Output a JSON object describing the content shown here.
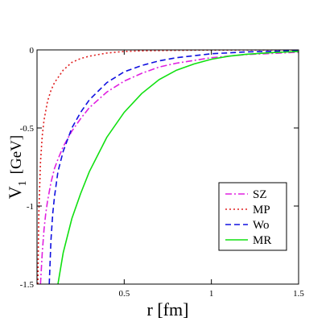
{
  "chart_data": {
    "type": "line",
    "xlabel": "r [fm]",
    "ylabel": "V",
    "ylabel_subscript": "1",
    "ylabel_unit": "[GeV]",
    "xlim": [
      0.0,
      1.5
    ],
    "ylim": [
      -1.5,
      0.0
    ],
    "x_ticks": [
      0.5,
      1.0,
      1.5
    ],
    "x_tick_labels": [
      "0.5",
      "1",
      "1.5"
    ],
    "y_ticks": [
      0.0,
      -0.5,
      -1.0,
      -1.5
    ],
    "y_tick_labels": [
      "0",
      "-0.5",
      "-1",
      "-1.5"
    ],
    "grid": false,
    "legend_position": "bottom-right",
    "series": [
      {
        "name": "SZ",
        "color": "#e020e0",
        "dash": "dash-dot",
        "x": [
          0.02,
          0.03,
          0.04,
          0.05,
          0.06,
          0.08,
          0.1,
          0.12,
          0.15,
          0.2,
          0.25,
          0.3,
          0.4,
          0.5,
          0.6,
          0.7,
          0.8,
          1.0,
          1.2,
          1.5
        ],
        "y": [
          -1.5,
          -1.3,
          -1.15,
          -1.05,
          -0.97,
          -0.85,
          -0.76,
          -0.7,
          -0.62,
          -0.52,
          -0.44,
          -0.37,
          -0.27,
          -0.2,
          -0.15,
          -0.11,
          -0.085,
          -0.05,
          -0.03,
          -0.015
        ]
      },
      {
        "name": "MP",
        "color": "#e02020",
        "dash": "dotted",
        "x": [
          0.005,
          0.01,
          0.02,
          0.03,
          0.04,
          0.06,
          0.08,
          0.1,
          0.15,
          0.2,
          0.25,
          0.3,
          0.4,
          0.5,
          0.6,
          0.8,
          1.0,
          1.5
        ],
        "y": [
          -1.5,
          -1.05,
          -0.72,
          -0.55,
          -0.45,
          -0.33,
          -0.26,
          -0.21,
          -0.13,
          -0.08,
          -0.055,
          -0.04,
          -0.02,
          -0.01,
          -0.006,
          -0.003,
          -0.001,
          0.0
        ]
      },
      {
        "name": "Wo",
        "color": "#1010e0",
        "dash": "dashed",
        "x": [
          0.07,
          0.08,
          0.09,
          0.1,
          0.12,
          0.15,
          0.2,
          0.25,
          0.3,
          0.4,
          0.5,
          0.6,
          0.7,
          0.8,
          1.0,
          1.2,
          1.5
        ],
        "y": [
          -1.5,
          -1.22,
          -1.05,
          -0.94,
          -0.78,
          -0.65,
          -0.5,
          -0.4,
          -0.32,
          -0.21,
          -0.14,
          -0.1,
          -0.07,
          -0.05,
          -0.025,
          -0.013,
          -0.005
        ]
      },
      {
        "name": "MR",
        "color": "#10e010",
        "dash": "solid",
        "x": [
          0.12,
          0.15,
          0.2,
          0.25,
          0.3,
          0.4,
          0.5,
          0.6,
          0.7,
          0.8,
          0.9,
          1.0,
          1.1,
          1.2,
          1.35,
          1.5
        ],
        "y": [
          -1.5,
          -1.3,
          -1.08,
          -0.92,
          -0.78,
          -0.56,
          -0.4,
          -0.28,
          -0.19,
          -0.13,
          -0.09,
          -0.06,
          -0.04,
          -0.028,
          -0.017,
          -0.01
        ]
      }
    ]
  }
}
